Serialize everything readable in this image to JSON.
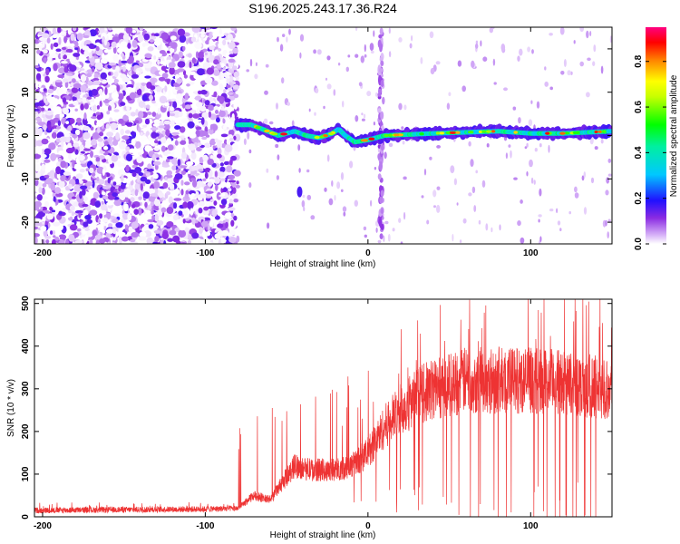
{
  "chart_data": [
    {
      "type": "heatmap",
      "title": "S196.2025.243.17.36.R24",
      "xlabel": "Height of straight line (km)",
      "ylabel": "Frequency (Hz)",
      "xlim": [
        -205,
        150
      ],
      "ylim": [
        -25,
        25
      ],
      "xticks": [
        -200,
        -100,
        0,
        100
      ],
      "yticks": [
        -20,
        -10,
        0,
        10,
        20
      ],
      "colorbar": {
        "label": "Normalized spectral amplitude",
        "range": [
          0.0,
          0.95
        ],
        "ticks": [
          0.0,
          0.2,
          0.4,
          0.6,
          0.8
        ],
        "colormap": "hsv-like (white-violet-blue-cyan-green-yellow-red-magenta)"
      },
      "features": {
        "noise_region_x": [
          -205,
          -80
        ],
        "signal_line": [
          {
            "x": -80,
            "f": 2.5
          },
          {
            "x": -72,
            "f": 2.5
          },
          {
            "x": -65,
            "f": 1.5
          },
          {
            "x": -55,
            "f": 0.0
          },
          {
            "x": -45,
            "f": 1.0
          },
          {
            "x": -38,
            "f": 0.0
          },
          {
            "x": -30,
            "f": -0.5
          },
          {
            "x": -22,
            "f": 0.5
          },
          {
            "x": -18,
            "f": 1.5
          },
          {
            "x": -14,
            "f": 0.0
          },
          {
            "x": -8,
            "f": -1.5
          },
          {
            "x": 0,
            "f": -1.0
          },
          {
            "x": 10,
            "f": 0.0
          },
          {
            "x": 40,
            "f": 0.5
          },
          {
            "x": 80,
            "f": 1.0
          },
          {
            "x": 100,
            "f": 0.5
          },
          {
            "x": 120,
            "f": 0.5
          },
          {
            "x": 150,
            "f": 1.0
          }
        ],
        "vertical_streak_x": 8,
        "isolated_blob": {
          "x": -42,
          "f": -13
        }
      }
    },
    {
      "type": "line",
      "title": "",
      "xlabel": "Height of straight line (km)",
      "ylabel": "SNR (10 * v/v)",
      "xlim": [
        -205,
        150
      ],
      "ylim": [
        0,
        510
      ],
      "xticks": [
        -200,
        -100,
        0,
        100
      ],
      "yticks": [
        0,
        100,
        200,
        300,
        400,
        500
      ],
      "series": [
        {
          "color": "#ee3333",
          "profile": [
            {
              "x": -205,
              "y": 15
            },
            {
              "x": -100,
              "y": 18
            },
            {
              "x": -80,
              "y": 20
            },
            {
              "x": -70,
              "y": 50
            },
            {
              "x": -60,
              "y": 40
            },
            {
              "x": -45,
              "y": 120
            },
            {
              "x": -35,
              "y": 110
            },
            {
              "x": -20,
              "y": 110
            },
            {
              "x": -10,
              "y": 120
            },
            {
              "x": 0,
              "y": 150
            },
            {
              "x": 10,
              "y": 210
            },
            {
              "x": 20,
              "y": 250
            },
            {
              "x": 30,
              "y": 280
            },
            {
              "x": 40,
              "y": 300
            },
            {
              "x": 60,
              "y": 320
            },
            {
              "x": 80,
              "y": 320
            },
            {
              "x": 100,
              "y": 320
            },
            {
              "x": 120,
              "y": 315
            },
            {
              "x": 150,
              "y": 300
            }
          ],
          "drop_to_zero_x": [
            63,
            68,
            80,
            85,
            102,
            110,
            115,
            118,
            122,
            126,
            128,
            133,
            137,
            140
          ],
          "peak_max": 510
        }
      ]
    }
  ]
}
